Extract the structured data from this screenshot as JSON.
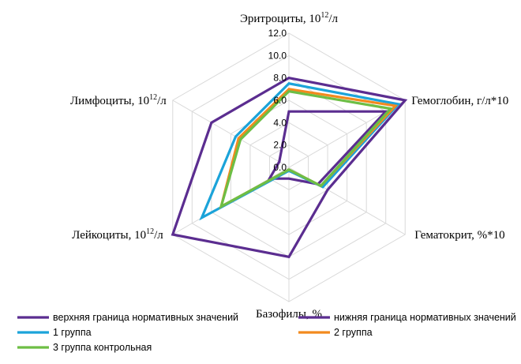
{
  "chart_data": {
    "type": "radar",
    "axes": [
      {
        "name": "Эритроциты, 10",
        "sup": "12",
        "suffix": "/л"
      },
      {
        "name": "Гемоглобин, г/л*10",
        "sup": "",
        "suffix": ""
      },
      {
        "name": "Гематокрит, %*10",
        "sup": "",
        "suffix": ""
      },
      {
        "name": "Базофилы, %",
        "sup": "",
        "suffix": ""
      },
      {
        "name": "Лейкоциты, 10",
        "sup": "12",
        "suffix": "/л"
      },
      {
        "name": "Лимфоциты, 10",
        "sup": "12",
        "suffix": "/л"
      }
    ],
    "rlim": [
      0,
      12
    ],
    "ticks": [
      "0.0",
      "2.0",
      "4.0",
      "6.0",
      "8.0",
      "10.0",
      "12.0"
    ],
    "grid": true,
    "legend_position": "bottom",
    "series": [
      {
        "name": "верхняя граница нормативных значений",
        "color": "#5B2D90",
        "values": [
          8.0,
          12.0,
          4.0,
          8.0,
          12.0,
          8.0
        ]
      },
      {
        "name": "нижняя граница нормативных значений",
        "color": "#5B2D90",
        "values": [
          5.0,
          10.0,
          3.0,
          1.0,
          2.0,
          1.0
        ]
      },
      {
        "name": "1 группа",
        "color": "#1BA3D9",
        "values": [
          7.5,
          11.3,
          3.5,
          0.3,
          9.0,
          5.5
        ]
      },
      {
        "name": "2 группа",
        "color": "#F28A1E",
        "values": [
          7.0,
          11.0,
          3.3,
          0.2,
          7.0,
          5.2
        ]
      },
      {
        "name": "3 группа контрольная",
        "color": "#6DBE45",
        "values": [
          6.8,
          10.5,
          3.3,
          0.2,
          7.0,
          5.0
        ]
      }
    ]
  }
}
